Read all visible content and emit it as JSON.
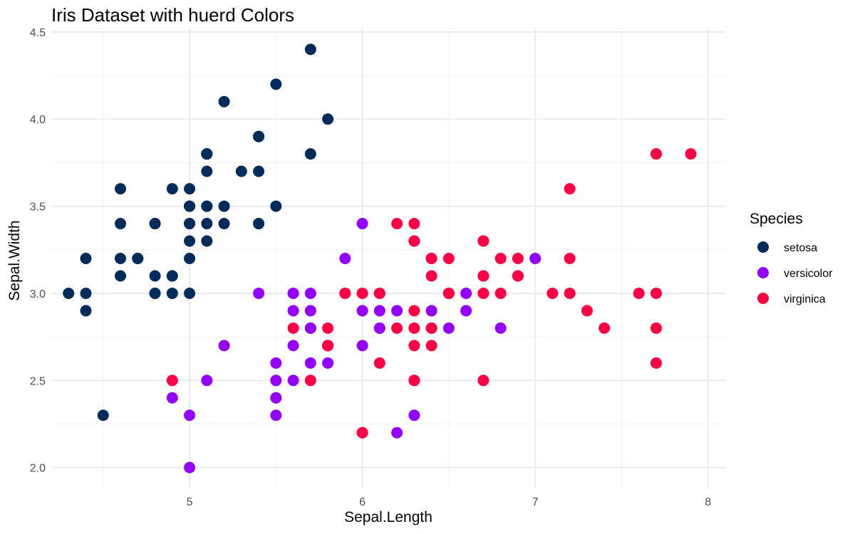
{
  "chart_data": {
    "type": "scatter",
    "title": "Iris Dataset with huerd Colors",
    "xlabel": "Sepal.Length",
    "ylabel": "Sepal.Width",
    "xlim": [
      4.2,
      8.1
    ],
    "ylim": [
      1.88,
      4.52
    ],
    "x_ticks": [
      5,
      6,
      7,
      8
    ],
    "x_tick_labels": [
      "5",
      "6",
      "7",
      "8"
    ],
    "y_ticks": [
      2.0,
      2.5,
      3.0,
      3.5,
      4.0,
      4.5
    ],
    "y_tick_labels": [
      "2.0",
      "2.5",
      "3.0",
      "3.5",
      "4.0",
      "4.5"
    ],
    "grid": true,
    "legend": {
      "title": "Species",
      "position": "right"
    },
    "series": [
      {
        "name": "setosa",
        "color": "#002B5B",
        "points": [
          [
            5.1,
            3.5
          ],
          [
            4.9,
            3.0
          ],
          [
            4.7,
            3.2
          ],
          [
            4.6,
            3.1
          ],
          [
            5.0,
            3.6
          ],
          [
            5.4,
            3.9
          ],
          [
            4.6,
            3.4
          ],
          [
            5.0,
            3.4
          ],
          [
            4.4,
            2.9
          ],
          [
            4.9,
            3.1
          ],
          [
            5.4,
            3.7
          ],
          [
            4.8,
            3.4
          ],
          [
            4.8,
            3.0
          ],
          [
            4.3,
            3.0
          ],
          [
            5.8,
            4.0
          ],
          [
            5.7,
            4.4
          ],
          [
            5.4,
            3.9
          ],
          [
            5.1,
            3.5
          ],
          [
            5.7,
            3.8
          ],
          [
            5.1,
            3.8
          ],
          [
            5.4,
            3.4
          ],
          [
            5.1,
            3.7
          ],
          [
            4.6,
            3.6
          ],
          [
            5.1,
            3.3
          ],
          [
            4.8,
            3.4
          ],
          [
            5.0,
            3.0
          ],
          [
            5.0,
            3.4
          ],
          [
            5.2,
            3.5
          ],
          [
            5.2,
            3.4
          ],
          [
            4.7,
            3.2
          ],
          [
            4.8,
            3.1
          ],
          [
            5.4,
            3.4
          ],
          [
            5.2,
            4.1
          ],
          [
            5.5,
            4.2
          ],
          [
            4.9,
            3.1
          ],
          [
            5.0,
            3.2
          ],
          [
            5.5,
            3.5
          ],
          [
            4.9,
            3.6
          ],
          [
            4.4,
            3.0
          ],
          [
            5.1,
            3.4
          ],
          [
            5.0,
            3.5
          ],
          [
            4.5,
            2.3
          ],
          [
            4.4,
            3.2
          ],
          [
            5.0,
            3.5
          ],
          [
            5.1,
            3.8
          ],
          [
            4.8,
            3.0
          ],
          [
            5.1,
            3.8
          ],
          [
            4.6,
            3.2
          ],
          [
            5.3,
            3.7
          ],
          [
            5.0,
            3.3
          ]
        ]
      },
      {
        "name": "versicolor",
        "color": "#9400FF",
        "points": [
          [
            7.0,
            3.2
          ],
          [
            6.4,
            3.2
          ],
          [
            6.9,
            3.1
          ],
          [
            5.5,
            2.3
          ],
          [
            6.5,
            2.8
          ],
          [
            5.7,
            2.8
          ],
          [
            6.3,
            3.3
          ],
          [
            4.9,
            2.4
          ],
          [
            6.6,
            2.9
          ],
          [
            5.2,
            2.7
          ],
          [
            5.0,
            2.0
          ],
          [
            5.9,
            3.0
          ],
          [
            6.0,
            2.2
          ],
          [
            6.1,
            2.9
          ],
          [
            5.6,
            2.9
          ],
          [
            6.7,
            3.1
          ],
          [
            5.6,
            3.0
          ],
          [
            5.8,
            2.7
          ],
          [
            6.2,
            2.2
          ],
          [
            5.6,
            2.5
          ],
          [
            5.9,
            3.2
          ],
          [
            6.1,
            2.8
          ],
          [
            6.3,
            2.5
          ],
          [
            6.1,
            2.8
          ],
          [
            6.4,
            2.9
          ],
          [
            6.6,
            3.0
          ],
          [
            6.8,
            2.8
          ],
          [
            6.7,
            3.0
          ],
          [
            6.0,
            2.9
          ],
          [
            5.7,
            2.6
          ],
          [
            5.5,
            2.4
          ],
          [
            5.5,
            2.4
          ],
          [
            5.8,
            2.7
          ],
          [
            6.0,
            2.7
          ],
          [
            5.4,
            3.0
          ],
          [
            6.0,
            3.4
          ],
          [
            6.7,
            3.1
          ],
          [
            6.3,
            2.3
          ],
          [
            5.6,
            3.0
          ],
          [
            5.5,
            2.5
          ],
          [
            5.5,
            2.6
          ],
          [
            6.1,
            3.0
          ],
          [
            5.8,
            2.6
          ],
          [
            5.0,
            2.3
          ],
          [
            5.6,
            2.7
          ],
          [
            5.7,
            3.0
          ],
          [
            5.7,
            2.9
          ],
          [
            6.2,
            2.9
          ],
          [
            5.1,
            2.5
          ],
          [
            5.7,
            2.8
          ]
        ]
      },
      {
        "name": "virginica",
        "color": "#FF0044",
        "points": [
          [
            6.3,
            3.3
          ],
          [
            5.8,
            2.7
          ],
          [
            7.1,
            3.0
          ],
          [
            6.3,
            2.9
          ],
          [
            6.5,
            3.0
          ],
          [
            7.6,
            3.0
          ],
          [
            4.9,
            2.5
          ],
          [
            7.3,
            2.9
          ],
          [
            6.7,
            2.5
          ],
          [
            7.2,
            3.6
          ],
          [
            6.5,
            3.2
          ],
          [
            6.4,
            2.7
          ],
          [
            6.8,
            3.0
          ],
          [
            5.7,
            2.5
          ],
          [
            5.8,
            2.8
          ],
          [
            6.4,
            3.2
          ],
          [
            6.5,
            3.0
          ],
          [
            7.7,
            3.8
          ],
          [
            7.7,
            2.6
          ],
          [
            6.0,
            2.2
          ],
          [
            6.9,
            3.2
          ],
          [
            5.6,
            2.8
          ],
          [
            7.7,
            2.8
          ],
          [
            6.3,
            2.7
          ],
          [
            6.7,
            3.3
          ],
          [
            7.2,
            3.2
          ],
          [
            6.2,
            2.8
          ],
          [
            6.1,
            3.0
          ],
          [
            6.4,
            2.8
          ],
          [
            7.2,
            3.0
          ],
          [
            7.4,
            2.8
          ],
          [
            7.9,
            3.8
          ],
          [
            6.4,
            2.8
          ],
          [
            6.3,
            2.8
          ],
          [
            6.1,
            2.6
          ],
          [
            7.7,
            3.0
          ],
          [
            6.3,
            3.4
          ],
          [
            6.4,
            3.1
          ],
          [
            6.0,
            3.0
          ],
          [
            6.9,
            3.1
          ],
          [
            6.7,
            3.1
          ],
          [
            6.9,
            3.1
          ],
          [
            5.8,
            2.7
          ],
          [
            6.8,
            3.2
          ],
          [
            6.7,
            3.3
          ],
          [
            6.7,
            3.0
          ],
          [
            6.3,
            2.5
          ],
          [
            6.5,
            3.0
          ],
          [
            6.2,
            3.4
          ],
          [
            5.9,
            3.0
          ]
        ]
      }
    ]
  }
}
